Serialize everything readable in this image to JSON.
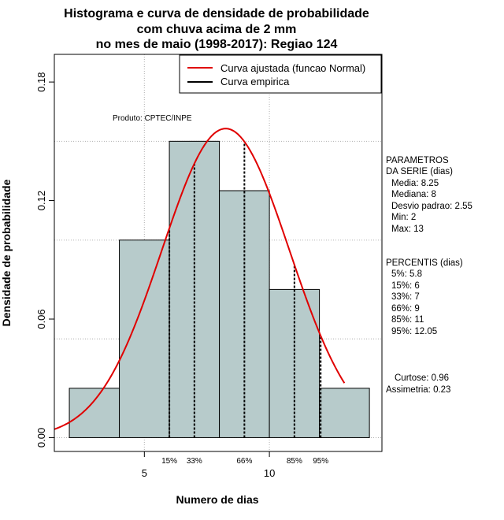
{
  "chart_data": {
    "type": "bar",
    "title_lines": [
      "Histograma e curva de densidade de probabilidade",
      "com chuva acima de 2 mm",
      "no mes de maio (1998-2017): Regiao 124"
    ],
    "xlabel": "Numero de dias",
    "ylabel": "Densidade de probabilidade",
    "xlim": [
      1.4,
      14.5
    ],
    "ylim": [
      -0.007,
      0.194
    ],
    "x_ticks": [
      5,
      10
    ],
    "y_ticks": [
      {
        "value": 0.0,
        "label": "0.00"
      },
      {
        "value": 0.06,
        "label": "0.06"
      },
      {
        "value": 0.12,
        "label": "0.12"
      },
      {
        "value": 0.18,
        "label": "0.18"
      }
    ],
    "grid_x": [
      5,
      10
    ],
    "grid_y": [
      0.0,
      0.05,
      0.1,
      0.15
    ],
    "bars": [
      {
        "start": 2,
        "end": 4,
        "density": 0.025
      },
      {
        "start": 4,
        "end": 6,
        "density": 0.1
      },
      {
        "start": 6,
        "end": 8,
        "density": 0.15
      },
      {
        "start": 8,
        "end": 10,
        "density": 0.125
      },
      {
        "start": 10,
        "end": 12,
        "density": 0.075
      },
      {
        "start": 12,
        "end": 14,
        "density": 0.025
      }
    ],
    "bar_color": "#b7cbcb",
    "series": [
      {
        "name": "Curva ajustada (funcao Normal)",
        "color": "#e00000",
        "kind": "normal",
        "mean": 8.25,
        "sd": 2.55,
        "x_start": 1.4,
        "x_end": 13.0
      },
      {
        "name": "Curva empirica",
        "color": "#000000",
        "kind": "percentile-lines"
      }
    ],
    "percentile_lines": [
      {
        "label": "15%",
        "x": 6
      },
      {
        "label": "33%",
        "x": 7
      },
      {
        "label": "66%",
        "x": 9
      },
      {
        "label": "85%",
        "x": 11
      },
      {
        "label": "95%",
        "x": 12.05
      }
    ],
    "legend_position": "top-right",
    "annotation": "Produto: CPTEC/INPE"
  },
  "side_panel": {
    "parametros_title": [
      "PARAMETROS",
      "DA SERIE (dias)"
    ],
    "parametros": [
      "Media: 8.25",
      "Mediana: 8",
      "Desvio padrao: 2.55",
      "Min: 2",
      "Max: 13"
    ],
    "percentis_title": "PERCENTIS (dias)",
    "percentis": [
      "5%: 5.8",
      "15%: 6",
      "33%: 7",
      "66%: 9",
      "85%: 11",
      "95%: 12.05"
    ],
    "stats": [
      "Curtose: 0.96",
      "Assimetria: 0.23"
    ]
  }
}
